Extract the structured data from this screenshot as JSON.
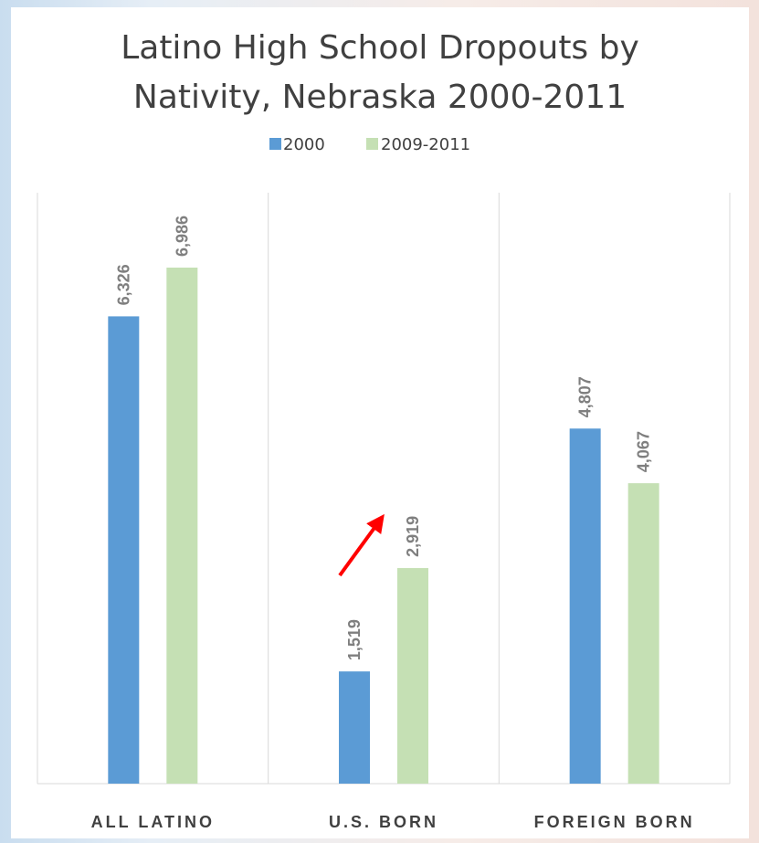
{
  "chart_data": {
    "type": "bar",
    "title_lines": [
      "Latino High School Dropouts by",
      "Nativity, Nebraska 2000-2011"
    ],
    "categories": [
      "ALL LATINO",
      "U.S. BORN",
      "FOREIGN BORN"
    ],
    "series": [
      {
        "name": "2000",
        "color": "#5b9bd5",
        "values": [
          6326,
          1519,
          4807
        ],
        "labels": [
          "6,326",
          "1,519",
          "4,807"
        ]
      },
      {
        "name": "2009-2011",
        "color": "#c5e0b4",
        "values": [
          6986,
          2919,
          4067
        ],
        "labels": [
          "6,986",
          "2,919",
          "4,067"
        ]
      }
    ],
    "legend_position": "top",
    "ylim": [
      0,
      8000
    ],
    "gridlines": "vertical-separators",
    "annotation": {
      "type": "arrow",
      "color": "#ff0000",
      "points_to": "U.S. BORN 2009-2011"
    }
  }
}
